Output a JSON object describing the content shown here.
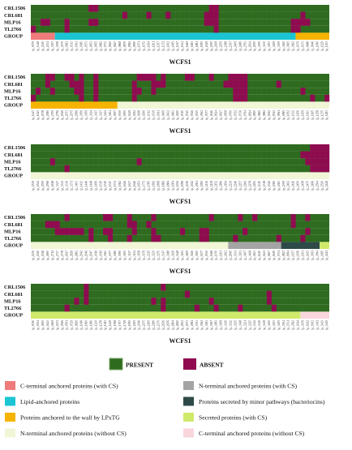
{
  "chart_data": [
    {
      "type": "heatmap",
      "xlabel": "WCFS1",
      "rows": [
        "CRL1506",
        "CRL681",
        "MLP16",
        "TL2766"
      ],
      "group_label": "GROUP",
      "x": [
        "lp_0079",
        "lp_1448",
        "lp_2110",
        "lp_2134",
        "lp_3057",
        "lp_3058",
        "lp_0175",
        "lp_0182",
        "lp_0313",
        "lp_0361",
        "lp_0385",
        "lp_0573",
        "lp_0653",
        "lp_0655",
        "lp_0682",
        "lp_0733",
        "lp_0845",
        "lp_0847",
        "lp_0868",
        "lp_0870",
        "lp_0982",
        "lp_0990",
        "lp_1071",
        "lp_1072",
        "lp_1194",
        "lp_1261",
        "lp_1307",
        "lp_1372",
        "lp_1452",
        "lp_1495",
        "lp_1617",
        "lp_1634",
        "lp_1669",
        "lp_1683",
        "lp_1881",
        "lp_1995",
        "lp_2049",
        "lp_2055",
        "lp_2108",
        "lp_2259",
        "lp_2388",
        "lp_2397",
        "lp_2409",
        "lp_2486",
        "lp_2793",
        "lp_2934",
        "lp_2955",
        "lp_3050",
        "lp_3130",
        "lp_3193",
        "lp_3269",
        "lp_3309",
        "lp_3460",
        "lp_3605",
        "lp_3662",
        "lp_0370",
        "lp_0373",
        "lp_0688",
        "lp_0946",
        "lp_1090",
        "lp_1229",
        "lp_1303"
      ],
      "absent": [
        [
          12,
          13,
          37,
          38
        ],
        [
          19,
          24,
          28,
          36,
          37,
          38,
          56
        ],
        [
          2,
          3,
          7,
          12,
          13,
          36,
          37,
          38,
          54,
          55,
          56,
          57
        ],
        [
          0,
          7,
          38,
          54,
          55
        ]
      ],
      "group_segments": [
        {
          "class": "ct_cs",
          "from": 0,
          "to": 4
        },
        {
          "class": "lipid",
          "from": 5,
          "to": 54
        },
        {
          "class": "lpxtg",
          "from": 55,
          "to": 61
        }
      ]
    },
    {
      "type": "heatmap",
      "xlabel": "WCFS1",
      "rows": [
        "CRL1506",
        "CRL681",
        "MLP16",
        "TL2766"
      ],
      "group_label": "GROUP",
      "x": [
        "lp_1447",
        "lp_1643",
        "lp_2578",
        "lp_2580",
        "lp_2700",
        "lp_2796",
        "lp_2940",
        "lp_2973",
        "lp_2975",
        "lp_2996",
        "lp_3050",
        "lp_3059",
        "lp_3114",
        "lp_3117",
        "lp_3127",
        "lp_3421",
        "lp_3604",
        "lp_0007",
        "lp_0030",
        "lp_0055",
        "lp_0149",
        "lp_0192",
        "lp_0208",
        "lp_0290",
        "lp_0312",
        "lp_0339",
        "lp_0361",
        "lp_0400",
        "lp_0432",
        "lp_0463",
        "lp_0490",
        "lp_0515",
        "lp_0515",
        "lp_0526",
        "lp_0535",
        "lp_0562",
        "lp_0577",
        "lp_0616",
        "lp_0624",
        "lp_0627",
        "lp_0658",
        "lp_0700",
        "lp_0722",
        "lp_0736",
        "lp_0794",
        "lp_0824",
        "lp_0855",
        "lp_0860",
        "lp_0882",
        "lp_0922",
        "lp_0943",
        "lp_0961",
        "lp_0985",
        "lp_1052",
        "lp_1132",
        "lp_1156",
        "lp_1159",
        "lp_1163",
        "lp_1165",
        "lp_1258",
        "lp_1275",
        "lp_1283"
      ],
      "absent": [
        [
          3,
          4,
          7,
          8,
          10,
          13,
          22,
          23,
          24,
          25,
          27,
          32,
          33,
          37,
          41,
          42,
          43,
          44
        ],
        [
          3,
          8,
          9,
          10,
          13,
          21,
          25,
          26,
          27,
          40,
          41,
          42,
          43,
          44,
          51
        ],
        [
          1,
          4,
          9,
          10,
          13,
          21,
          22,
          25,
          42,
          43,
          44,
          56
        ],
        [
          0,
          10,
          13,
          21,
          42,
          43,
          44,
          58,
          61
        ]
      ],
      "group_segments": [
        {
          "class": "lpxtg",
          "from": 0,
          "to": 17
        },
        {
          "class": "nt_nocs",
          "from": 18,
          "to": 61
        }
      ]
    },
    {
      "type": "heatmap",
      "xlabel": "WCFS1",
      "rows": [
        "CRL1506",
        "CRL681",
        "MLP16",
        "TL2766"
      ],
      "group_label": "GROUP",
      "x": [
        "lp_2539",
        "lp_2544",
        "lp_2559",
        "lp_2598",
        "lp_2618",
        "lp_3327",
        "lp_3332",
        "lp_3336",
        "lp_3371",
        "lp_3403",
        "lp_1413",
        "lp_1446",
        "lp_1448",
        "lp_1499",
        "lp_1515",
        "lp_1510",
        "lp_1517",
        "lp_1574",
        "lp_1582",
        "lp_1626",
        "lp_1637",
        "lp_1646",
        "lp_1651",
        "lp_1771",
        "lp_1785",
        "lp_1811",
        "lp_1858",
        "lp_1866",
        "lp_1884",
        "lp_1904",
        "lp_1936",
        "lp_1998",
        "lp_2019",
        "lp_2042",
        "lp_2061",
        "lp_2095",
        "lp_2136",
        "lp_2138",
        "lp_2152",
        "lp_2186",
        "lp_2194",
        "lp_2239",
        "lp_2246",
        "lp_2257",
        "lp_2266",
        "lp_2278",
        "lp_2291",
        "lp_2310",
        "lp_2318",
        "lp_2326",
        "lp_2380",
        "lp_2383",
        "lp_2399",
        "lp_2402",
        "lp_2426",
        "lp_2450",
        "lp_2458",
        "lp_2475",
        "lp_2496",
        "lp_2504",
        "lp_2520",
        "lp_2428"
      ],
      "absent": [
        [
          58,
          59,
          60,
          61
        ],
        [
          56,
          57,
          58,
          59,
          60,
          61
        ],
        [
          4,
          22,
          57,
          58,
          59,
          60,
          61
        ],
        [
          7,
          58,
          59,
          60,
          61
        ]
      ],
      "group_segments": [
        {
          "class": "nt_nocs",
          "from": 0,
          "to": 61
        }
      ]
    },
    {
      "type": "heatmap",
      "xlabel": "WCFS1",
      "rows": [
        "CRL1506",
        "CRL681",
        "MLP16",
        "TL2766"
      ],
      "group_label": "GROUP",
      "x": [
        "lp_2476",
        "lp_2540",
        "lp_2548",
        "lp_2600",
        "lp_2714",
        "lp_2737",
        "lp_2778",
        "lp_2817",
        "lp_2826",
        "lp_2862",
        "lp_2942",
        "lp_2946",
        "lp_2947",
        "lp_3016",
        "lp_3019",
        "lp_3063",
        "lp_3077",
        "lp_3086",
        "lp_3090",
        "lp_3105",
        "lp_3117",
        "lp_3134",
        "lp_3158",
        "lp_3179",
        "lp_3215",
        "lp_3235",
        "lp_3275",
        "lp_3347",
        "lp_3388",
        "lp_3429",
        "lp_3448",
        "lp_3451",
        "lp_3609",
        "lp_3626",
        "lp_3655",
        "lp_0277",
        "lp_0530",
        "lp_1068",
        "lp_1070",
        "lp_1261",
        "lp_2162",
        "lp_2845",
        "lp_3031",
        "lp_3201",
        "lp_3407",
        "lp_3408",
        "lp_0403",
        "lp_0410",
        "lp_0421",
        "lp_0607",
        "lp_0619",
        "lp_0731",
        "lp_0827",
        "lp_0994",
        "lp_1157",
        "lp_1158",
        "lp_2301",
        "lp_2425",
        "lp_3091",
        "lp_3094",
        "lp_3095",
        "lp_2411"
      ],
      "absent": [
        [
          7,
          15,
          16,
          20,
          25,
          37,
          43,
          46,
          54,
          57
        ],
        [
          3,
          4,
          5,
          20,
          21,
          24,
          54
        ],
        [
          5,
          6,
          7,
          8,
          9,
          10,
          12,
          15,
          16,
          21,
          25,
          31,
          35,
          36,
          44,
          57
        ],
        [
          12,
          16,
          20,
          25,
          26,
          35,
          36,
          42,
          51,
          56
        ]
      ],
      "group_segments": [
        {
          "class": "nt_nocs",
          "from": 0,
          "to": 40
        },
        {
          "class": "nt_cs",
          "from": 41,
          "to": 51
        },
        {
          "class": "minor",
          "from": 52,
          "to": 59
        },
        {
          "class": "secreted",
          "from": 60,
          "to": 61
        }
      ]
    },
    {
      "type": "heatmap",
      "xlabel": "WCFS1",
      "rows": [
        "CRL1506",
        "CRL681",
        "MLP16",
        "TL2766"
      ],
      "group_label": "GROUP",
      "x": [
        "lp_0010",
        "lp_0304",
        "lp_0400",
        "lp_0443",
        "lp_0469",
        "lp_0472",
        "lp_0566",
        "lp_0591",
        "lp_0729",
        "lp_0820",
        "lp_1049",
        "lp_1060",
        "lp_1180",
        "lp_1230",
        "lp_1278",
        "lp_1383",
        "lp_1449",
        "lp_1598",
        "lp_1707",
        "lp_1749",
        "lp_1950",
        "lp_2005",
        "lp_2146",
        "lp_2175",
        "lp_2200",
        "lp_2280",
        "lp_2375",
        "lp_2636",
        "lp_2676",
        "lp_2804",
        "lp_2820",
        "lp_2831",
        "lp_2973",
        "lp_2984",
        "lp_3033",
        "lp_3062",
        "lp_3063",
        "lp_3067",
        "lp_3083",
        "lp_3108",
        "lp_3110",
        "lp_3112",
        "lp_3125",
        "lp_3148",
        "lp_3221",
        "lp_3225",
        "lp_3341",
        "lp_3349",
        "lp_3438",
        "lp_3450",
        "lp_3453",
        "lp_3455",
        "lp_3504",
        "lp_3531",
        "lp_3562",
        "lp_3614",
        "lp_3679",
        "lp_0022",
        "lp_0302",
        "lp_3411",
        "lp_3413",
        "lp_3415"
      ],
      "absent": [
        [
          11,
          27
        ],
        [
          11,
          32,
          49
        ],
        [
          9,
          11,
          25,
          27,
          37,
          49
        ],
        [
          7,
          27,
          34,
          38,
          43,
          50
        ]
      ],
      "group_segments": [
        {
          "class": "secreted",
          "from": 0,
          "to": 55
        },
        {
          "class": "ct_nocs",
          "from": 56,
          "to": 61
        }
      ]
    }
  ],
  "colors": {
    "present": "#2e6b1f",
    "absent": "#8f0b50",
    "ct_cs": "#f07b7b",
    "lipid": "#1bc5d3",
    "lpxtg": "#f6b300",
    "nt_nocs": "#f0f6d6",
    "nt_cs": "#a4a4a4",
    "minor": "#2d4a48",
    "secreted": "#cfe96b",
    "ct_nocs": "#f9d6dc"
  },
  "key": {
    "present": "PRESENT",
    "absent": "ABSENT"
  },
  "legend": [
    {
      "class": "ct_cs",
      "label": "C-terminal anchored proteins (with CS)"
    },
    {
      "class": "nt_cs",
      "label": "N-terminal anchored proteins (with CS)"
    },
    {
      "class": "lipid",
      "label": "Lipid-anchored proteins"
    },
    {
      "class": "minor",
      "label": "Proteins secreted by minor pathways (bacteriocins)"
    },
    {
      "class": "lpxtg",
      "label": "Proteins anchored to the wall by LPxTG"
    },
    {
      "class": "secreted",
      "label": "Secreted proteins (with CS)"
    },
    {
      "class": "nt_nocs",
      "label": "N-terminal anchored proteins (without CS)"
    },
    {
      "class": "ct_nocs",
      "label": "C-terminal anchored proteins (without CS)"
    }
  ]
}
